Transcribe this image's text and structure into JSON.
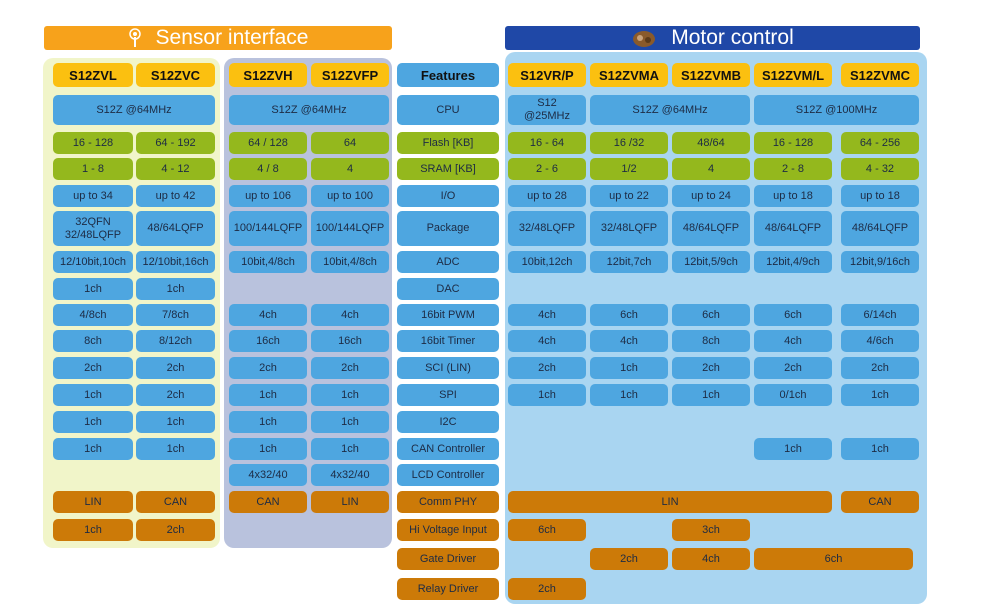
{
  "banners": {
    "sensor": {
      "title": "Sensor interface",
      "icon": "antenna-icon",
      "color": "#f7a21b"
    },
    "motor": {
      "title": "Motor control",
      "icon": "motor-icon",
      "color": "#1f48a7"
    }
  },
  "colors": {
    "blue": "#4ea6e0",
    "green": "#94b81d",
    "orange": "#cc7a08",
    "header": "#fbc010",
    "features": "#4ea6e0",
    "sensor_panel_a": "#f1f5c9",
    "sensor_panel_b": "#b9c2dd",
    "motor_panel": "#a9d5f1"
  },
  "features_header": "Features",
  "features": [
    "CPU",
    "Flash [KB]",
    "SRAM [KB]",
    "I/O",
    "Package",
    "ADC",
    "DAC",
    "16bit PWM",
    "16bit Timer",
    "SCI (LIN)",
    "SPI",
    "I2C",
    "CAN Controller",
    "LCD Controller",
    "Comm  PHY",
    "Hi Voltage  Input",
    "Gate  Driver",
    "Relay  Driver"
  ],
  "feature_kinds": [
    "blue",
    "green",
    "green",
    "blue",
    "blue",
    "blue",
    "blue",
    "blue",
    "blue",
    "blue",
    "blue",
    "blue",
    "blue",
    "blue",
    "orange",
    "orange",
    "orange",
    "orange"
  ],
  "products": [
    "S12ZVL",
    "S12ZVC",
    "S12ZVH",
    "S12ZVFP",
    "S12VR/P",
    "S12ZVMA",
    "S12ZVMB",
    "S12ZVM/L",
    "S12ZVMC"
  ],
  "cells": [
    {
      "r": 0,
      "c": 0,
      "span": 2,
      "text": "S12Z @64MHz",
      "kind": "blue"
    },
    {
      "r": 0,
      "c": 2,
      "span": 2,
      "text": "S12Z @64MHz",
      "kind": "blue"
    },
    {
      "r": 0,
      "c": 4,
      "span": 1,
      "text": "S12\n@25MHz",
      "kind": "blue"
    },
    {
      "r": 0,
      "c": 5,
      "span": 2,
      "text": "S12Z @64MHz",
      "kind": "blue"
    },
    {
      "r": 0,
      "c": 7,
      "span": 2,
      "text": "S12Z @100MHz",
      "kind": "blue"
    },
    {
      "r": 1,
      "c": 0,
      "span": 1,
      "text": "16 - 128",
      "kind": "green"
    },
    {
      "r": 1,
      "c": 1,
      "span": 1,
      "text": "64 - 192",
      "kind": "green"
    },
    {
      "r": 1,
      "c": 2,
      "span": 1,
      "text": "64 / 128",
      "kind": "green"
    },
    {
      "r": 1,
      "c": 3,
      "span": 1,
      "text": "64",
      "kind": "green"
    },
    {
      "r": 1,
      "c": 4,
      "span": 1,
      "text": "16 - 64",
      "kind": "green"
    },
    {
      "r": 1,
      "c": 5,
      "span": 1,
      "text": "16 /32",
      "kind": "green"
    },
    {
      "r": 1,
      "c": 6,
      "span": 1,
      "text": "48/64",
      "kind": "green"
    },
    {
      "r": 1,
      "c": 7,
      "span": 1,
      "text": "16 - 128",
      "kind": "green"
    },
    {
      "r": 1,
      "c": 8,
      "span": 1,
      "text": "64 - 256",
      "kind": "green"
    },
    {
      "r": 2,
      "c": 0,
      "span": 1,
      "text": "1 - 8",
      "kind": "green"
    },
    {
      "r": 2,
      "c": 1,
      "span": 1,
      "text": "4 - 12",
      "kind": "green"
    },
    {
      "r": 2,
      "c": 2,
      "span": 1,
      "text": "4 / 8",
      "kind": "green"
    },
    {
      "r": 2,
      "c": 3,
      "span": 1,
      "text": "4",
      "kind": "green"
    },
    {
      "r": 2,
      "c": 4,
      "span": 1,
      "text": "2 - 6",
      "kind": "green"
    },
    {
      "r": 2,
      "c": 5,
      "span": 1,
      "text": "1/2",
      "kind": "green"
    },
    {
      "r": 2,
      "c": 6,
      "span": 1,
      "text": "4",
      "kind": "green"
    },
    {
      "r": 2,
      "c": 7,
      "span": 1,
      "text": "2 - 8",
      "kind": "green"
    },
    {
      "r": 2,
      "c": 8,
      "span": 1,
      "text": "4 - 32",
      "kind": "green"
    },
    {
      "r": 3,
      "c": 0,
      "span": 1,
      "text": "up to 34",
      "kind": "blue"
    },
    {
      "r": 3,
      "c": 1,
      "span": 1,
      "text": "up to 42",
      "kind": "blue"
    },
    {
      "r": 3,
      "c": 2,
      "span": 1,
      "text": "up to 106",
      "kind": "blue"
    },
    {
      "r": 3,
      "c": 3,
      "span": 1,
      "text": "up to 100",
      "kind": "blue"
    },
    {
      "r": 3,
      "c": 4,
      "span": 1,
      "text": "up to 28",
      "kind": "blue"
    },
    {
      "r": 3,
      "c": 5,
      "span": 1,
      "text": "up to 22",
      "kind": "blue"
    },
    {
      "r": 3,
      "c": 6,
      "span": 1,
      "text": "up to 24",
      "kind": "blue"
    },
    {
      "r": 3,
      "c": 7,
      "span": 1,
      "text": "up to 18",
      "kind": "blue"
    },
    {
      "r": 3,
      "c": 8,
      "span": 1,
      "text": "up to 18",
      "kind": "blue"
    },
    {
      "r": 4,
      "c": 0,
      "span": 1,
      "text": "32QFN\n32/48LQFP",
      "kind": "blue"
    },
    {
      "r": 4,
      "c": 1,
      "span": 1,
      "text": "48/64LQFP",
      "kind": "blue"
    },
    {
      "r": 4,
      "c": 2,
      "span": 1,
      "text": "100/144LQFP",
      "kind": "blue"
    },
    {
      "r": 4,
      "c": 3,
      "span": 1,
      "text": "100/144LQFP",
      "kind": "blue"
    },
    {
      "r": 4,
      "c": 4,
      "span": 1,
      "text": "32/48LQFP",
      "kind": "blue"
    },
    {
      "r": 4,
      "c": 5,
      "span": 1,
      "text": "32/48LQFP",
      "kind": "blue"
    },
    {
      "r": 4,
      "c": 6,
      "span": 1,
      "text": "48/64LQFP",
      "kind": "blue"
    },
    {
      "r": 4,
      "c": 7,
      "span": 1,
      "text": "48/64LQFP",
      "kind": "blue"
    },
    {
      "r": 4,
      "c": 8,
      "span": 1,
      "text": "48/64LQFP",
      "kind": "blue"
    },
    {
      "r": 5,
      "c": 0,
      "span": 1,
      "text": "12/10bit,10ch",
      "kind": "blue"
    },
    {
      "r": 5,
      "c": 1,
      "span": 1,
      "text": "12/10bit,16ch",
      "kind": "blue"
    },
    {
      "r": 5,
      "c": 2,
      "span": 1,
      "text": "10bit,4/8ch",
      "kind": "blue"
    },
    {
      "r": 5,
      "c": 3,
      "span": 1,
      "text": "10bit,4/8ch",
      "kind": "blue"
    },
    {
      "r": 5,
      "c": 4,
      "span": 1,
      "text": "10bit,12ch",
      "kind": "blue"
    },
    {
      "r": 5,
      "c": 5,
      "span": 1,
      "text": "12bit,7ch",
      "kind": "blue"
    },
    {
      "r": 5,
      "c": 6,
      "span": 1,
      "text": "12bit,5/9ch",
      "kind": "blue"
    },
    {
      "r": 5,
      "c": 7,
      "span": 1,
      "text": "12bit,4/9ch",
      "kind": "blue"
    },
    {
      "r": 5,
      "c": 8,
      "span": 1,
      "text": "12bit,9/16ch",
      "kind": "blue"
    },
    {
      "r": 6,
      "c": 0,
      "span": 1,
      "text": "1ch",
      "kind": "blue"
    },
    {
      "r": 6,
      "c": 1,
      "span": 1,
      "text": "1ch",
      "kind": "blue"
    },
    {
      "r": 7,
      "c": 0,
      "span": 1,
      "text": "4/8ch",
      "kind": "blue"
    },
    {
      "r": 7,
      "c": 1,
      "span": 1,
      "text": "7/8ch",
      "kind": "blue"
    },
    {
      "r": 7,
      "c": 2,
      "span": 1,
      "text": "4ch",
      "kind": "blue"
    },
    {
      "r": 7,
      "c": 3,
      "span": 1,
      "text": "4ch",
      "kind": "blue"
    },
    {
      "r": 7,
      "c": 4,
      "span": 1,
      "text": "4ch",
      "kind": "blue"
    },
    {
      "r": 7,
      "c": 5,
      "span": 1,
      "text": "6ch",
      "kind": "blue"
    },
    {
      "r": 7,
      "c": 6,
      "span": 1,
      "text": "6ch",
      "kind": "blue"
    },
    {
      "r": 7,
      "c": 7,
      "span": 1,
      "text": "6ch",
      "kind": "blue"
    },
    {
      "r": 7,
      "c": 8,
      "span": 1,
      "text": "6/14ch",
      "kind": "blue"
    },
    {
      "r": 8,
      "c": 0,
      "span": 1,
      "text": "8ch",
      "kind": "blue"
    },
    {
      "r": 8,
      "c": 1,
      "span": 1,
      "text": "8/12ch",
      "kind": "blue"
    },
    {
      "r": 8,
      "c": 2,
      "span": 1,
      "text": "16ch",
      "kind": "blue"
    },
    {
      "r": 8,
      "c": 3,
      "span": 1,
      "text": "16ch",
      "kind": "blue"
    },
    {
      "r": 8,
      "c": 4,
      "span": 1,
      "text": "4ch",
      "kind": "blue"
    },
    {
      "r": 8,
      "c": 5,
      "span": 1,
      "text": "4ch",
      "kind": "blue"
    },
    {
      "r": 8,
      "c": 6,
      "span": 1,
      "text": "8ch",
      "kind": "blue"
    },
    {
      "r": 8,
      "c": 7,
      "span": 1,
      "text": "4ch",
      "kind": "blue"
    },
    {
      "r": 8,
      "c": 8,
      "span": 1,
      "text": "4/6ch",
      "kind": "blue"
    },
    {
      "r": 9,
      "c": 0,
      "span": 1,
      "text": "2ch",
      "kind": "blue"
    },
    {
      "r": 9,
      "c": 1,
      "span": 1,
      "text": "2ch",
      "kind": "blue"
    },
    {
      "r": 9,
      "c": 2,
      "span": 1,
      "text": "2ch",
      "kind": "blue"
    },
    {
      "r": 9,
      "c": 3,
      "span": 1,
      "text": "2ch",
      "kind": "blue"
    },
    {
      "r": 9,
      "c": 4,
      "span": 1,
      "text": "2ch",
      "kind": "blue"
    },
    {
      "r": 9,
      "c": 5,
      "span": 1,
      "text": "1ch",
      "kind": "blue"
    },
    {
      "r": 9,
      "c": 6,
      "span": 1,
      "text": "2ch",
      "kind": "blue"
    },
    {
      "r": 9,
      "c": 7,
      "span": 1,
      "text": "2ch",
      "kind": "blue"
    },
    {
      "r": 9,
      "c": 8,
      "span": 1,
      "text": "2ch",
      "kind": "blue"
    },
    {
      "r": 10,
      "c": 0,
      "span": 1,
      "text": "1ch",
      "kind": "blue"
    },
    {
      "r": 10,
      "c": 1,
      "span": 1,
      "text": "2ch",
      "kind": "blue"
    },
    {
      "r": 10,
      "c": 2,
      "span": 1,
      "text": "1ch",
      "kind": "blue"
    },
    {
      "r": 10,
      "c": 3,
      "span": 1,
      "text": "1ch",
      "kind": "blue"
    },
    {
      "r": 10,
      "c": 4,
      "span": 1,
      "text": "1ch",
      "kind": "blue"
    },
    {
      "r": 10,
      "c": 5,
      "span": 1,
      "text": "1ch",
      "kind": "blue"
    },
    {
      "r": 10,
      "c": 6,
      "span": 1,
      "text": "1ch",
      "kind": "blue"
    },
    {
      "r": 10,
      "c": 7,
      "span": 1,
      "text": "0/1ch",
      "kind": "blue"
    },
    {
      "r": 10,
      "c": 8,
      "span": 1,
      "text": "1ch",
      "kind": "blue"
    },
    {
      "r": 11,
      "c": 0,
      "span": 1,
      "text": "1ch",
      "kind": "blue"
    },
    {
      "r": 11,
      "c": 1,
      "span": 1,
      "text": "1ch",
      "kind": "blue"
    },
    {
      "r": 11,
      "c": 2,
      "span": 1,
      "text": "1ch",
      "kind": "blue"
    },
    {
      "r": 11,
      "c": 3,
      "span": 1,
      "text": "1ch",
      "kind": "blue"
    },
    {
      "r": 12,
      "c": 0,
      "span": 1,
      "text": "1ch",
      "kind": "blue"
    },
    {
      "r": 12,
      "c": 1,
      "span": 1,
      "text": "1ch",
      "kind": "blue"
    },
    {
      "r": 12,
      "c": 2,
      "span": 1,
      "text": "1ch",
      "kind": "blue"
    },
    {
      "r": 12,
      "c": 3,
      "span": 1,
      "text": "1ch",
      "kind": "blue"
    },
    {
      "r": 12,
      "c": 7,
      "span": 1,
      "text": "1ch",
      "kind": "blue"
    },
    {
      "r": 12,
      "c": 8,
      "span": 1,
      "text": "1ch",
      "kind": "blue"
    },
    {
      "r": 13,
      "c": 2,
      "span": 1,
      "text": "4x32/40",
      "kind": "blue"
    },
    {
      "r": 13,
      "c": 3,
      "span": 1,
      "text": "4x32/40",
      "kind": "blue"
    },
    {
      "r": 14,
      "c": 0,
      "span": 1,
      "text": "LIN",
      "kind": "orange"
    },
    {
      "r": 14,
      "c": 1,
      "span": 1,
      "text": "CAN",
      "kind": "orange"
    },
    {
      "r": 14,
      "c": 2,
      "span": 1,
      "text": "CAN",
      "kind": "orange"
    },
    {
      "r": 14,
      "c": 3,
      "span": 1,
      "text": "LIN",
      "kind": "orange"
    },
    {
      "r": 14,
      "c": 4,
      "span": 4,
      "text": "LIN",
      "kind": "orange"
    },
    {
      "r": 14,
      "c": 8,
      "span": 1,
      "text": "CAN",
      "kind": "orange"
    },
    {
      "r": 15,
      "c": 0,
      "span": 1,
      "text": "1ch",
      "kind": "orange"
    },
    {
      "r": 15,
      "c": 1,
      "span": 1,
      "text": "2ch",
      "kind": "orange"
    },
    {
      "r": 15,
      "c": 4,
      "span": 1,
      "text": "6ch",
      "kind": "orange"
    },
    {
      "r": 15,
      "c": 6,
      "span": 1,
      "text": "3ch",
      "kind": "orange"
    },
    {
      "r": 16,
      "c": 5,
      "span": 1,
      "text": "2ch",
      "kind": "orange"
    },
    {
      "r": 16,
      "c": 6,
      "span": 1,
      "text": "4ch",
      "kind": "orange"
    },
    {
      "r": 16,
      "c": 7,
      "span": 2,
      "text": "6ch",
      "kind": "orange"
    },
    {
      "r": 17,
      "c": 4,
      "span": 1,
      "text": "2ch",
      "kind": "orange"
    }
  ]
}
